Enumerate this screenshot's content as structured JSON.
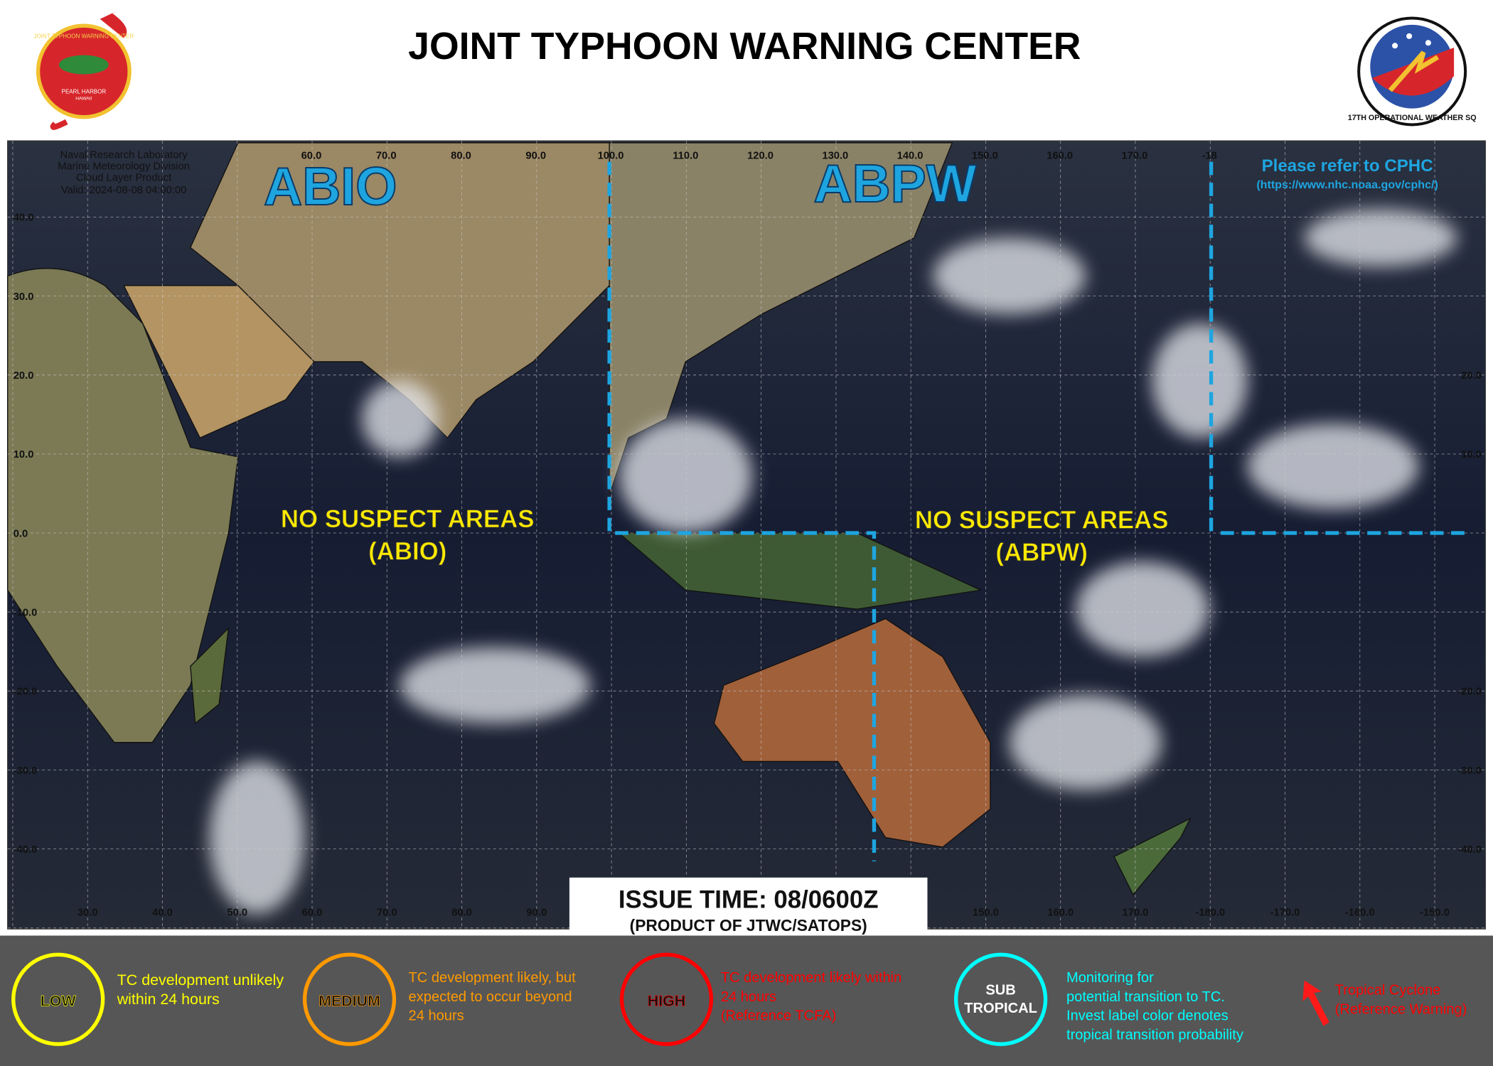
{
  "header": {
    "title": "JOINT TYPHOON WARNING CENTER",
    "left_logo": [
      "JOINT TYPHOON WARNING CENTER",
      "PEARL HARBOR",
      "HAWAII"
    ],
    "right_logo": "17TH OPERATIONAL WEATHER SQ"
  },
  "map": {
    "source": [
      "Naval Research Laboratory",
      "Marine Meteorology Division",
      "Cloud Layer Product",
      "Valid: 2024-08-08 04:00:00"
    ],
    "lon_top": [
      "60.0",
      "70.0",
      "80.0",
      "90.0",
      "100.0",
      "110.0",
      "120.0",
      "130.0",
      "140.0",
      "150.0",
      "160.0",
      "170.0",
      "-18"
    ],
    "lon_bottom_left": [
      "30.0",
      "40.0",
      "50.0",
      "60.0",
      "70.0",
      "80.0",
      "90.0"
    ],
    "lon_bottom_right": [
      "150.0",
      "160.0",
      "170.0",
      "-180.0",
      "-170.0",
      "-160.0",
      "-150.0"
    ],
    "lat_left": [
      "40.0",
      "30.0",
      "20.0",
      "10.0",
      "0.0",
      "-10.0",
      "-20.0",
      "-30.0",
      "-40.0"
    ],
    "lat_right": [
      "20.0",
      "10.0",
      "-20.0",
      "-30.0",
      "-40.0"
    ],
    "regions": [
      {
        "name": "ABIO",
        "status": [
          "NO SUSPECT AREAS",
          "(ABIO)"
        ]
      },
      {
        "name": "ABPW",
        "status": [
          "NO SUSPECT AREAS",
          "(ABPW)"
        ]
      }
    ],
    "cphc": [
      "Please refer to CPHC",
      "(https://www.nhc.noaa.gov/cphc/)"
    ],
    "issue_time": "ISSUE TIME: 08/0600Z",
    "product": "(PRODUCT OF JTWC/SATOPS)"
  },
  "legend": [
    {
      "label": "LOW",
      "text": [
        "TC development  unlikely",
        "within 24 hours"
      ]
    },
    {
      "label": "MEDIUM",
      "text": [
        "TC development likely, but",
        "expected to occur beyond",
        "24 hours"
      ]
    },
    {
      "label": "HIGH",
      "text": [
        "TC development  likely within",
        "24 hours",
        "(Reference TCFA)"
      ]
    },
    {
      "label": [
        "SUB",
        "TROPICAL"
      ],
      "text": [
        "Monitoring  for",
        "potential  transition to TC.",
        "Invest label color denotes",
        "tropical transition probability"
      ]
    },
    {
      "label": null,
      "text": [
        "Tropical Cyclone",
        "(Reference Warning)"
      ]
    }
  ]
}
